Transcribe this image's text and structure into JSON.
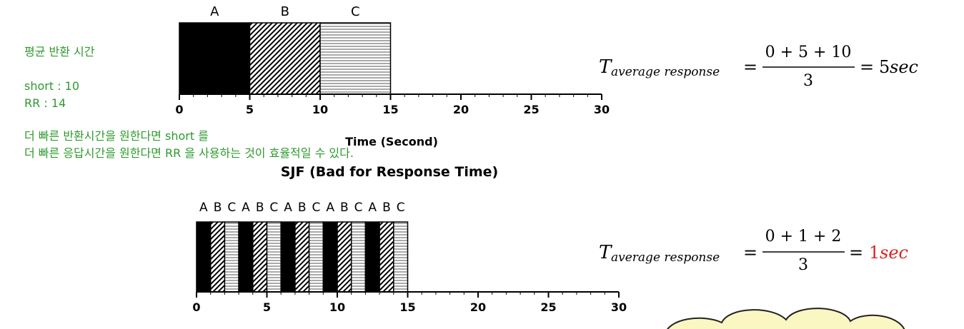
{
  "notes": {
    "title": "평균 반환 시간",
    "short_line": "short : 10",
    "rr_line": "RR : 14",
    "conclusion_line1": "더 빠른 반환시간을 원한다면 short 를",
    "conclusion_line2": "더 빠른 응답시간을 원한다면 RR 을 사용하는 것이 효율적일 수 있다."
  },
  "colors": {
    "note_green": "#2e9a2e",
    "highlight_red": "#e02020",
    "cloud_fill": "#fbf7c2"
  },
  "chart_data": [
    {
      "type": "gantt",
      "title": "SJF (Bad for Response Time)",
      "xlabel": "Time (Second)",
      "xlim": [
        0,
        30
      ],
      "xticks": [
        0,
        5,
        10,
        15,
        20,
        25,
        30
      ],
      "segments": [
        {
          "label": "A",
          "start": 0,
          "end": 5,
          "pattern": "solid-black"
        },
        {
          "label": "B",
          "start": 5,
          "end": 10,
          "pattern": "diagonal-hatch"
        },
        {
          "label": "C",
          "start": 10,
          "end": 15,
          "pattern": "horizontal-lines"
        }
      ],
      "formula": {
        "lhs_symbol": "T",
        "lhs_subscript": "average response",
        "numerator": "0 + 5 + 10",
        "denominator": "3",
        "result_value": "5",
        "result_unit": "sec",
        "result_highlight": false
      }
    },
    {
      "type": "gantt",
      "title": "",
      "xlabel": "",
      "xlim": [
        0,
        30
      ],
      "xticks": [
        0,
        5,
        10,
        15,
        20,
        25,
        30
      ],
      "segments": [
        {
          "label": "A",
          "start": 0,
          "end": 1,
          "pattern": "solid-black"
        },
        {
          "label": "B",
          "start": 1,
          "end": 2,
          "pattern": "diagonal-hatch"
        },
        {
          "label": "C",
          "start": 2,
          "end": 3,
          "pattern": "horizontal-lines"
        },
        {
          "label": "A",
          "start": 3,
          "end": 4,
          "pattern": "solid-black"
        },
        {
          "label": "B",
          "start": 4,
          "end": 5,
          "pattern": "diagonal-hatch"
        },
        {
          "label": "C",
          "start": 5,
          "end": 6,
          "pattern": "horizontal-lines"
        },
        {
          "label": "A",
          "start": 6,
          "end": 7,
          "pattern": "solid-black"
        },
        {
          "label": "B",
          "start": 7,
          "end": 8,
          "pattern": "diagonal-hatch"
        },
        {
          "label": "C",
          "start": 8,
          "end": 9,
          "pattern": "horizontal-lines"
        },
        {
          "label": "A",
          "start": 9,
          "end": 10,
          "pattern": "solid-black"
        },
        {
          "label": "B",
          "start": 10,
          "end": 11,
          "pattern": "diagonal-hatch"
        },
        {
          "label": "C",
          "start": 11,
          "end": 12,
          "pattern": "horizontal-lines"
        },
        {
          "label": "A",
          "start": 12,
          "end": 13,
          "pattern": "solid-black"
        },
        {
          "label": "B",
          "start": 13,
          "end": 14,
          "pattern": "diagonal-hatch"
        },
        {
          "label": "C",
          "start": 14,
          "end": 15,
          "pattern": "horizontal-lines"
        }
      ],
      "formula": {
        "lhs_symbol": "T",
        "lhs_subscript": "average response",
        "numerator": "0 + 1 + 2",
        "denominator": "3",
        "result_value": "1",
        "result_unit": "sec",
        "result_highlight": true
      }
    }
  ]
}
